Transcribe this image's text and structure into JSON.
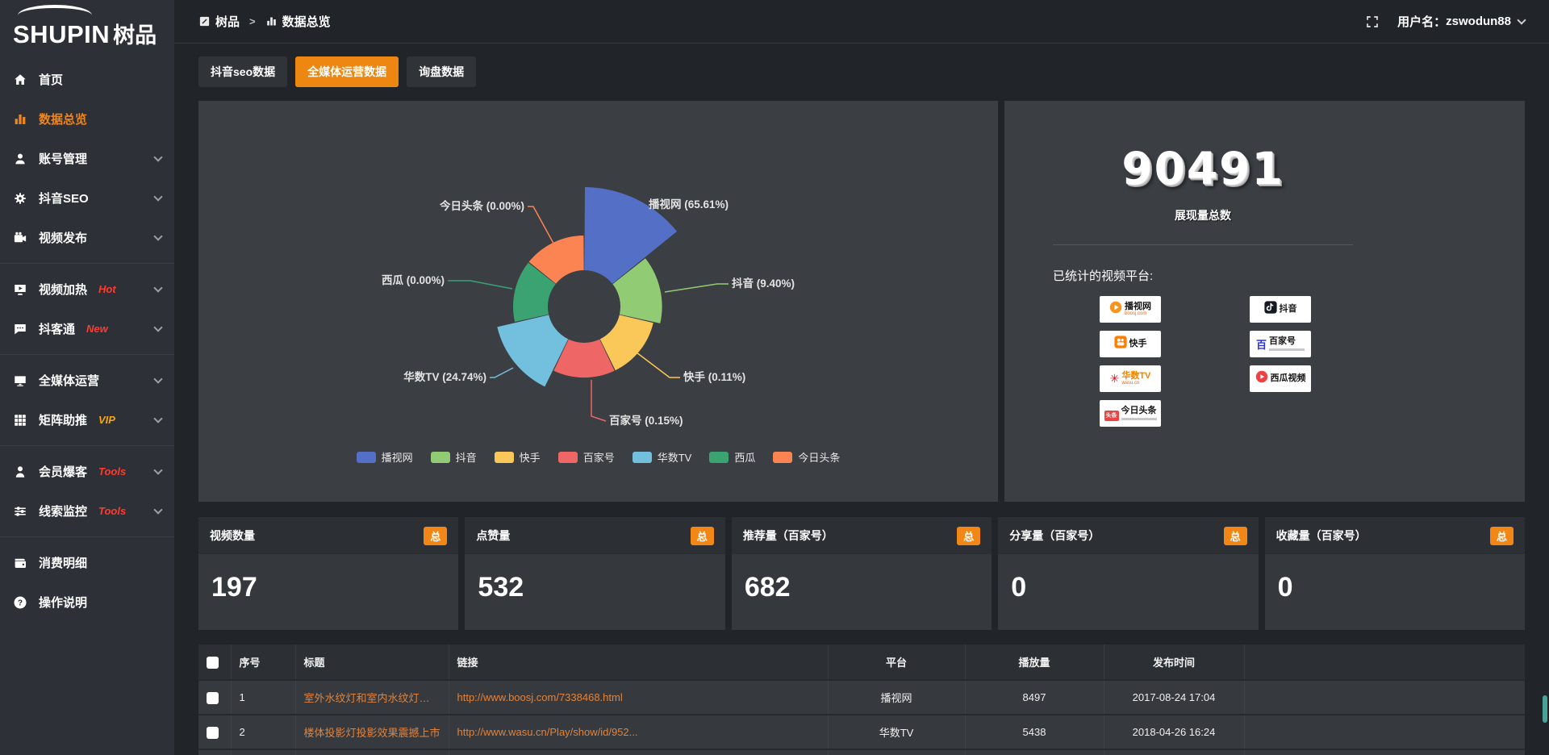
{
  "brand": {
    "name_en": "SHUPIN",
    "name_cn": "树品"
  },
  "topbar": {
    "breadcrumb": [
      {
        "label": "树品",
        "icon": "page"
      },
      {
        "label": "数据总览",
        "icon": "chart"
      }
    ],
    "separator": ">",
    "username_prefix": "用户名：",
    "username": "zswodun88"
  },
  "sidebar": {
    "items": [
      {
        "id": "home",
        "label": "首页",
        "icon": "home"
      },
      {
        "id": "data-overview",
        "label": "数据总览",
        "icon": "chart",
        "active": true
      },
      {
        "id": "account-manage",
        "label": "账号管理",
        "icon": "user",
        "chevron": true
      },
      {
        "id": "douyin-seo",
        "label": "抖音SEO",
        "icon": "gear",
        "chevron": true
      },
      {
        "id": "video-publish",
        "label": "视频发布",
        "icon": "camera",
        "chevron": true
      },
      {
        "divider": true
      },
      {
        "id": "video-heating",
        "label": "视频加热",
        "icon": "screen",
        "tag": "Hot",
        "tag_color": "#ff3b30",
        "chevron": true
      },
      {
        "id": "douketong",
        "label": "抖客通",
        "icon": "chat",
        "tag": "New",
        "tag_color": "#ff3b30",
        "chevron": true
      },
      {
        "divider": true
      },
      {
        "id": "media-operation",
        "label": "全媒体运营",
        "icon": "monitor",
        "chevron": true
      },
      {
        "id": "matrix-boost",
        "label": "矩阵助推",
        "icon": "grid",
        "tag": "VIP",
        "tag_color": "#f2a71b",
        "chevron": true
      },
      {
        "divider": true
      },
      {
        "id": "member-baoke",
        "label": "会员爆客",
        "icon": "person",
        "tag": "Tools",
        "tag_color": "#ff3b30",
        "chevron": true
      },
      {
        "id": "clue-monitor",
        "label": "线索监控",
        "icon": "sliders",
        "tag": "Tools",
        "tag_color": "#ff3b30",
        "chevron": true
      },
      {
        "divider": true
      },
      {
        "id": "consume-detail",
        "label": "消费明细",
        "icon": "wallet"
      },
      {
        "id": "operation-guide",
        "label": "操作说明",
        "icon": "help"
      }
    ]
  },
  "tabs": [
    {
      "label": "抖音seo数据",
      "active": false
    },
    {
      "label": "全媒体运营数据",
      "active": true
    },
    {
      "label": "询盘数据",
      "active": false
    }
  ],
  "chart_data": {
    "type": "pie",
    "variant": "nightingale_rose",
    "categories": [
      "播视网",
      "抖音",
      "快手",
      "百家号",
      "华数TV",
      "西瓜",
      "今日头条"
    ],
    "values_percent": [
      65.61,
      9.4,
      0.11,
      0.15,
      24.74,
      0.0,
      0.0
    ],
    "colors": [
      "#5470c6",
      "#91cc75",
      "#fac858",
      "#ee6666",
      "#73c0de",
      "#3ba272",
      "#fc8452"
    ],
    "labels_text": [
      "播视网 (65.61%)",
      "抖音 (9.40%)",
      "快手 (0.11%)",
      "百家号 (0.15%)",
      "华数TV (24.74%)",
      "西瓜 (0.00%)",
      "今日头条 (0.00%)"
    ],
    "legend_position": "bottom",
    "label_format": "{name} ({value}%)"
  },
  "summary": {
    "total": "90491",
    "total_label": "展现量总数",
    "platforms_title": "已统计的视频平台:",
    "platforms": [
      {
        "key": "boosj",
        "name": "播视网",
        "sub": "boosj.com"
      },
      {
        "key": "douyin",
        "name": "抖音"
      },
      {
        "key": "kuaishou",
        "name": "快手"
      },
      {
        "key": "baijiahao",
        "name": "百家号"
      },
      {
        "key": "wasu",
        "name": "华数TV",
        "sub": "wasu.cn"
      },
      {
        "key": "xigua",
        "name": "西瓜视频"
      },
      {
        "key": "toutiao",
        "name": "今日头条"
      }
    ]
  },
  "stat_cards": [
    {
      "title": "视频数量",
      "badge": "总",
      "value": "197"
    },
    {
      "title": "点赞量",
      "badge": "总",
      "value": "532"
    },
    {
      "title": "推荐量（百家号）",
      "badge": "总",
      "value": "682"
    },
    {
      "title": "分享量（百家号）",
      "badge": "总",
      "value": "0"
    },
    {
      "title": "收藏量（百家号）",
      "badge": "总",
      "value": "0"
    }
  ],
  "table": {
    "headers": [
      "",
      "序号",
      "标题",
      "链接",
      "平台",
      "播放量",
      "发布时间",
      ""
    ],
    "rows": [
      {
        "num": "1",
        "title": "室外水纹灯和室内水纹灯的区别和简介",
        "link": "http://www.boosj.com/7338468.html",
        "platform": "播视网",
        "plays": "8497",
        "time": "2017-08-24 17:04"
      },
      {
        "num": "2",
        "title": "楼体投影灯投影效果震撼上市",
        "link": "http://www.wasu.cn/Play/show/id/952...",
        "platform": "华数TV",
        "plays": "5438",
        "time": "2018-04-26 16:24"
      },
      {
        "num": "",
        "title": "",
        "link": "",
        "platform": "",
        "plays": "",
        "time": ""
      }
    ]
  },
  "colors": {
    "accent_orange": "#ee8712",
    "link_orange": "#e2833b",
    "sidebar_active": "#f08519",
    "tag_red": "#ff3b30",
    "tag_gold": "#f2a71b"
  }
}
